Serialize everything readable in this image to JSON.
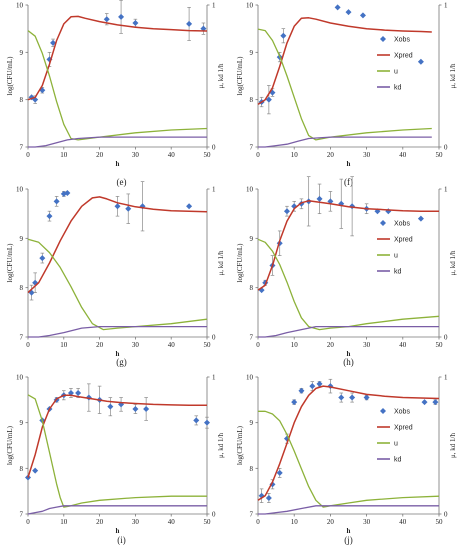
{
  "colors": {
    "xobs": "#4472c4",
    "xpred": "#c0392b",
    "u": "#8db23a",
    "kd": "#7a5ea6",
    "axis": "#777777",
    "error": "#888888"
  },
  "chart_data": [
    {
      "type": "line",
      "label": "(e)",
      "xlabel": "h",
      "ylabel": "log(CFU/mL)",
      "y2label": "μ, kd   1/h",
      "xlim": [
        0,
        50
      ],
      "ylim": [
        7,
        10
      ],
      "y2lim": [
        0,
        1
      ],
      "xticks": [
        "0",
        "10",
        "20",
        "30",
        "40",
        "50"
      ],
      "yticks": [
        "7",
        "8",
        "9",
        "10"
      ],
      "y2ticks": [
        "0",
        "1"
      ],
      "legend": [
        "Xobs",
        "Xpred",
        "u",
        "kd"
      ],
      "legend_position": "none",
      "series": [
        {
          "name": "Xobs",
          "style": "scatter",
          "x": [
            1,
            2,
            4,
            6,
            7,
            22,
            26,
            30,
            45,
            49
          ],
          "y": [
            8.05,
            8.0,
            8.2,
            8.85,
            9.2,
            9.7,
            9.75,
            9.62,
            9.6,
            9.5
          ],
          "err": [
            0,
            0.08,
            0.06,
            0.15,
            0.08,
            0.12,
            0.35,
            0.08,
            0.35,
            0.12
          ]
        },
        {
          "name": "Xpred",
          "style": "line",
          "x": [
            0,
            2,
            4,
            6,
            8,
            10,
            12,
            14,
            16,
            20,
            25,
            30,
            35,
            40,
            45,
            50
          ],
          "y": [
            8.0,
            8.05,
            8.3,
            8.75,
            9.25,
            9.6,
            9.75,
            9.76,
            9.72,
            9.65,
            9.58,
            9.53,
            9.5,
            9.48,
            9.46,
            9.45
          ]
        },
        {
          "name": "u",
          "style": "line",
          "x": [
            0,
            2,
            4,
            6,
            8,
            10,
            12,
            14,
            20,
            30,
            40,
            50
          ],
          "y": [
            0.82,
            0.78,
            0.66,
            0.5,
            0.32,
            0.16,
            0.06,
            0.05,
            0.07,
            0.1,
            0.12,
            0.13
          ]
        },
        {
          "name": "kd",
          "style": "line",
          "x": [
            0,
            2,
            5,
            8,
            11,
            14,
            20,
            30,
            40,
            50
          ],
          "y": [
            0.0,
            0.0,
            0.01,
            0.03,
            0.05,
            0.06,
            0.07,
            0.07,
            0.07,
            0.07
          ]
        }
      ]
    },
    {
      "type": "line",
      "label": "(f)",
      "xlabel": "h",
      "ylabel": "log(CFU/mL)",
      "y2label": "μ, kd   1/h",
      "xlim": [
        0,
        50
      ],
      "ylim": [
        7,
        10
      ],
      "y2lim": [
        0,
        1
      ],
      "xticks": [
        "0",
        "10",
        "20",
        "30",
        "40",
        "50"
      ],
      "yticks": [
        "7",
        "8",
        "9",
        "10"
      ],
      "y2ticks": [
        "0",
        "1"
      ],
      "legend": [
        "Xobs",
        "Xpred",
        "u",
        "kd"
      ],
      "legend_position": "right",
      "series": [
        {
          "name": "Xobs",
          "style": "scatter",
          "x": [
            1,
            3,
            4,
            6,
            7,
            22,
            25,
            29,
            45
          ],
          "y": [
            7.95,
            8.0,
            8.15,
            8.9,
            9.35,
            9.95,
            9.85,
            9.78,
            8.8
          ],
          "err": [
            0.1,
            0.3,
            0.08,
            0.1,
            0.15,
            0,
            0,
            0,
            0
          ]
        },
        {
          "name": "Xpred",
          "style": "line",
          "x": [
            0,
            2,
            4,
            6,
            8,
            10,
            12,
            14,
            16,
            20,
            25,
            30,
            35,
            40,
            45,
            48
          ],
          "y": [
            7.9,
            8.0,
            8.25,
            8.7,
            9.2,
            9.55,
            9.72,
            9.73,
            9.7,
            9.62,
            9.55,
            9.5,
            9.47,
            9.45,
            9.44,
            9.43
          ]
        },
        {
          "name": "u",
          "style": "line",
          "x": [
            0,
            2,
            4,
            6,
            8,
            10,
            12,
            14,
            16,
            20,
            30,
            40,
            48
          ],
          "y": [
            0.83,
            0.82,
            0.75,
            0.64,
            0.5,
            0.35,
            0.2,
            0.08,
            0.05,
            0.07,
            0.1,
            0.12,
            0.13
          ]
        },
        {
          "name": "kd",
          "style": "line",
          "x": [
            0,
            2,
            5,
            8,
            11,
            14,
            20,
            30,
            40,
            48
          ],
          "y": [
            0.0,
            0.0,
            0.01,
            0.02,
            0.04,
            0.06,
            0.07,
            0.07,
            0.07,
            0.07
          ]
        }
      ]
    },
    {
      "type": "line",
      "label": "(g)",
      "xlabel": "h",
      "ylabel": "log(CFU/mL)",
      "y2label": "μ, kd   1/h",
      "xlim": [
        0,
        50
      ],
      "ylim": [
        7,
        10
      ],
      "y2lim": [
        0,
        1
      ],
      "xticks": [
        "0",
        "10",
        "20",
        "30",
        "40",
        "50"
      ],
      "yticks": [
        "7",
        "8",
        "9",
        "10"
      ],
      "y2ticks": [
        "0",
        "1"
      ],
      "legend": [
        "Xobs",
        "Xpred",
        "u",
        "kd"
      ],
      "legend_position": "none",
      "series": [
        {
          "name": "Xobs",
          "style": "scatter",
          "x": [
            1,
            2,
            4,
            6,
            8,
            10,
            11,
            25,
            28,
            32,
            45
          ],
          "y": [
            7.9,
            8.1,
            8.6,
            9.45,
            9.75,
            9.9,
            9.92,
            9.65,
            9.6,
            9.65,
            9.65
          ],
          "err": [
            0.15,
            0.2,
            0.1,
            0.1,
            0.1,
            0.05,
            0,
            0.2,
            0.3,
            0.5,
            0
          ]
        },
        {
          "name": "Xpred",
          "style": "line",
          "x": [
            0,
            3,
            6,
            9,
            12,
            15,
            18,
            20,
            22,
            25,
            30,
            35,
            40,
            45,
            50
          ],
          "y": [
            7.9,
            8.1,
            8.5,
            8.95,
            9.35,
            9.65,
            9.82,
            9.84,
            9.8,
            9.72,
            9.64,
            9.59,
            9.56,
            9.55,
            9.54
          ]
        },
        {
          "name": "u",
          "style": "line",
          "x": [
            0,
            3,
            6,
            9,
            12,
            15,
            18,
            21,
            25,
            30,
            40,
            50
          ],
          "y": [
            0.66,
            0.64,
            0.57,
            0.47,
            0.34,
            0.2,
            0.09,
            0.05,
            0.06,
            0.07,
            0.09,
            0.12
          ]
        },
        {
          "name": "kd",
          "style": "line",
          "x": [
            0,
            3,
            6,
            10,
            15,
            20,
            25,
            30,
            40,
            50
          ],
          "y": [
            0.0,
            0.0,
            0.01,
            0.03,
            0.06,
            0.07,
            0.07,
            0.07,
            0.07,
            0.07
          ]
        }
      ]
    },
    {
      "type": "line",
      "label": "(h)",
      "xlabel": "h",
      "ylabel": "log(CFU/mL)",
      "y2label": "μ, kd   1/h",
      "xlim": [
        0,
        50
      ],
      "ylim": [
        7,
        10
      ],
      "y2lim": [
        0,
        1
      ],
      "xticks": [
        "0",
        "10",
        "20",
        "30",
        "40",
        "50"
      ],
      "yticks": [
        "7",
        "8",
        "9",
        "10"
      ],
      "y2ticks": [
        "0",
        "1"
      ],
      "legend": [
        "Xobs",
        "Xpred",
        "u",
        "kd"
      ],
      "legend_position": "right",
      "series": [
        {
          "name": "Xobs",
          "style": "scatter",
          "x": [
            1,
            2,
            4,
            6,
            8,
            10,
            12,
            14,
            17,
            20,
            23,
            26,
            30,
            33,
            36,
            45
          ],
          "y": [
            7.95,
            8.1,
            8.45,
            8.9,
            9.55,
            9.65,
            9.7,
            9.75,
            9.8,
            9.75,
            9.7,
            9.65,
            9.6,
            9.55,
            9.55,
            9.4
          ],
          "err": [
            0,
            0.05,
            0.2,
            0.25,
            0.1,
            0.1,
            0.1,
            0.5,
            0.3,
            0.2,
            0.5,
            0.6,
            0.1,
            0,
            0,
            0
          ]
        },
        {
          "name": "Xpred",
          "style": "line",
          "x": [
            0,
            2,
            4,
            6,
            8,
            10,
            12,
            14,
            16,
            20,
            25,
            30,
            35,
            40,
            45,
            50
          ],
          "y": [
            7.95,
            8.05,
            8.45,
            8.95,
            9.35,
            9.6,
            9.72,
            9.76,
            9.74,
            9.7,
            9.64,
            9.6,
            9.58,
            9.56,
            9.55,
            9.55
          ]
        },
        {
          "name": "u",
          "style": "line",
          "x": [
            0,
            2,
            4,
            6,
            8,
            10,
            12,
            14,
            17,
            20,
            25,
            30,
            40,
            50
          ],
          "y": [
            0.66,
            0.64,
            0.58,
            0.49,
            0.37,
            0.24,
            0.13,
            0.07,
            0.05,
            0.06,
            0.07,
            0.09,
            0.12,
            0.14
          ]
        },
        {
          "name": "kd",
          "style": "line",
          "x": [
            0,
            2,
            5,
            8,
            12,
            16,
            20,
            30,
            40,
            50
          ],
          "y": [
            0.0,
            0.0,
            0.01,
            0.03,
            0.05,
            0.07,
            0.07,
            0.07,
            0.07,
            0.07
          ]
        }
      ]
    },
    {
      "type": "line",
      "label": "(i)",
      "xlabel": "h",
      "ylabel": "log(CFU/mL)",
      "y2label": "μ, kd   1/h",
      "xlim": [
        0,
        50
      ],
      "ylim": [
        7,
        10
      ],
      "y2lim": [
        0,
        1
      ],
      "xticks": [
        "0",
        "10",
        "20",
        "30",
        "40",
        "50"
      ],
      "yticks": [
        "7",
        "8",
        "9",
        "10"
      ],
      "y2ticks": [
        "0",
        "1"
      ],
      "legend": [
        "Xobs",
        "Xpred",
        "u",
        "kd"
      ],
      "legend_position": "none",
      "series": [
        {
          "name": "Xobs",
          "style": "scatter",
          "x": [
            0,
            2,
            4,
            6,
            8,
            10,
            12,
            14,
            17,
            20,
            23,
            26,
            30,
            33,
            47,
            50
          ],
          "y": [
            7.8,
            7.95,
            9.05,
            9.3,
            9.5,
            9.6,
            9.65,
            9.65,
            9.55,
            9.5,
            9.35,
            9.4,
            9.3,
            9.3,
            9.05,
            9.0
          ],
          "err": [
            0,
            0,
            0,
            0,
            0.05,
            0.1,
            0.1,
            0.1,
            0.3,
            0.3,
            0.2,
            0.15,
            0.1,
            0.25,
            0.1,
            0.12
          ]
        },
        {
          "name": "Xpred",
          "style": "line",
          "x": [
            0,
            2,
            4,
            6,
            8,
            10,
            12,
            14,
            18,
            22,
            26,
            30,
            35,
            40,
            45,
            50
          ],
          "y": [
            7.8,
            8.3,
            8.9,
            9.3,
            9.52,
            9.6,
            9.6,
            9.57,
            9.52,
            9.47,
            9.44,
            9.42,
            9.4,
            9.39,
            9.38,
            9.38
          ]
        },
        {
          "name": "u",
          "style": "line",
          "x": [
            0,
            2,
            4,
            6,
            8,
            9,
            10,
            12,
            15,
            20,
            30,
            40,
            50
          ],
          "y": [
            0.87,
            0.84,
            0.68,
            0.45,
            0.22,
            0.12,
            0.05,
            0.06,
            0.08,
            0.1,
            0.12,
            0.13,
            0.13
          ]
        },
        {
          "name": "kd",
          "style": "line",
          "x": [
            0,
            2,
            4,
            6,
            8,
            10,
            15,
            20,
            30,
            40,
            50
          ],
          "y": [
            0.0,
            0.01,
            0.02,
            0.04,
            0.05,
            0.06,
            0.06,
            0.06,
            0.06,
            0.06,
            0.06
          ]
        }
      ]
    },
    {
      "type": "line",
      "label": "(j)",
      "xlabel": "h",
      "ylabel": "log(CFU/mL)",
      "y2label": "μ, kd   1/h",
      "xlim": [
        0,
        50
      ],
      "ylim": [
        7,
        10
      ],
      "y2lim": [
        0,
        1
      ],
      "xticks": [
        "0",
        "10",
        "20",
        "30",
        "40",
        "50"
      ],
      "yticks": [
        "7",
        "8",
        "9",
        "10"
      ],
      "y2ticks": [
        "0",
        "1"
      ],
      "legend": [
        "Xobs",
        "Xpred",
        "u",
        "kd"
      ],
      "legend_position": "right",
      "series": [
        {
          "name": "Xobs",
          "style": "scatter",
          "x": [
            1,
            3,
            4,
            6,
            8,
            10,
            12,
            15,
            17,
            20,
            23,
            26,
            30,
            46,
            49
          ],
          "y": [
            7.4,
            7.35,
            7.65,
            7.9,
            8.65,
            9.45,
            9.7,
            9.8,
            9.85,
            9.8,
            9.55,
            9.55,
            9.55,
            9.45,
            9.45
          ],
          "err": [
            0.15,
            0.1,
            0.1,
            0.1,
            0.1,
            0.05,
            0.05,
            0.1,
            0.05,
            0.15,
            0.1,
            0.1,
            0.05,
            0,
            0.05
          ]
        },
        {
          "name": "Xpred",
          "style": "line",
          "x": [
            0,
            2,
            4,
            6,
            8,
            10,
            12,
            14,
            16,
            18,
            20,
            25,
            30,
            35,
            40,
            45,
            50
          ],
          "y": [
            7.3,
            7.4,
            7.7,
            8.1,
            8.55,
            9.0,
            9.35,
            9.6,
            9.75,
            9.8,
            9.78,
            9.7,
            9.62,
            9.58,
            9.55,
            9.54,
            9.53
          ]
        },
        {
          "name": "u",
          "style": "line",
          "x": [
            0,
            2,
            4,
            6,
            8,
            10,
            12,
            14,
            16,
            18,
            20,
            25,
            30,
            40,
            50
          ],
          "y": [
            0.75,
            0.75,
            0.73,
            0.68,
            0.58,
            0.46,
            0.33,
            0.2,
            0.1,
            0.05,
            0.06,
            0.08,
            0.1,
            0.12,
            0.13
          ]
        },
        {
          "name": "kd",
          "style": "line",
          "x": [
            0,
            2,
            5,
            8,
            12,
            16,
            20,
            30,
            40,
            50
          ],
          "y": [
            0.0,
            0.0,
            0.01,
            0.02,
            0.04,
            0.06,
            0.06,
            0.06,
            0.06,
            0.06
          ]
        }
      ]
    }
  ]
}
